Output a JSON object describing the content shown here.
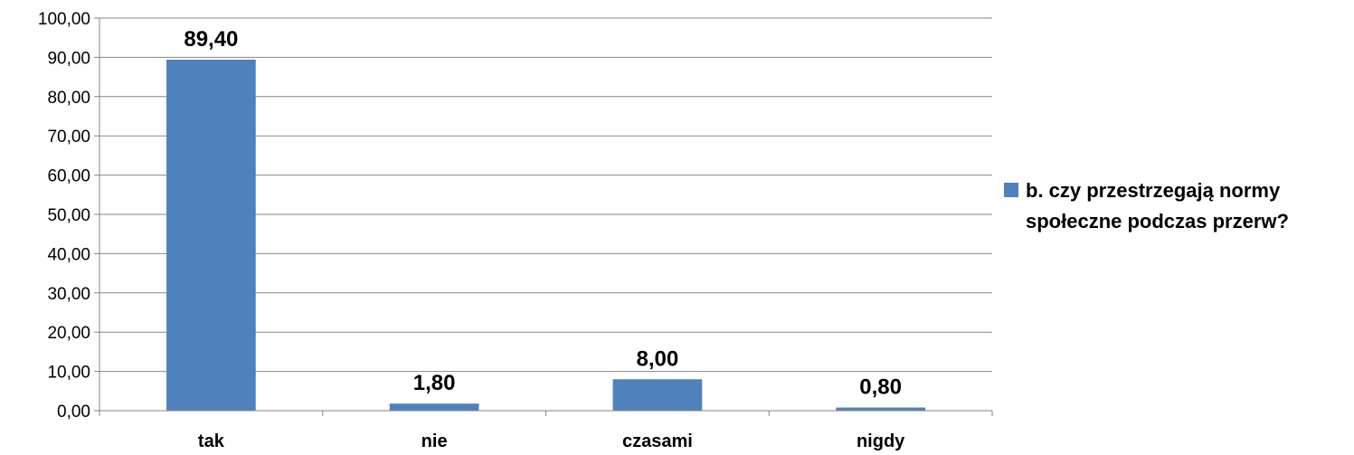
{
  "chart_data": {
    "type": "bar",
    "categories": [
      "tak",
      "nie",
      "czasami",
      "nigdy"
    ],
    "series": [
      {
        "name": "b.  czy przestrzegają normy\nspołeczne podczas przerw?",
        "values": [
          89.4,
          1.8,
          8.0,
          0.8
        ],
        "labels": [
          "89,40",
          "1,80",
          "8,00",
          "0,80"
        ],
        "color": "#4F81BD"
      }
    ],
    "yticks": [
      "0,00",
      "10,00",
      "20,00",
      "30,00",
      "40,00",
      "50,00",
      "60,00",
      "70,00",
      "80,00",
      "90,00",
      "100,00"
    ],
    "ylim": [
      0,
      100
    ],
    "grid": true,
    "legend_position": "right",
    "gridline_color": "#868686",
    "axis_color": "#868686"
  }
}
